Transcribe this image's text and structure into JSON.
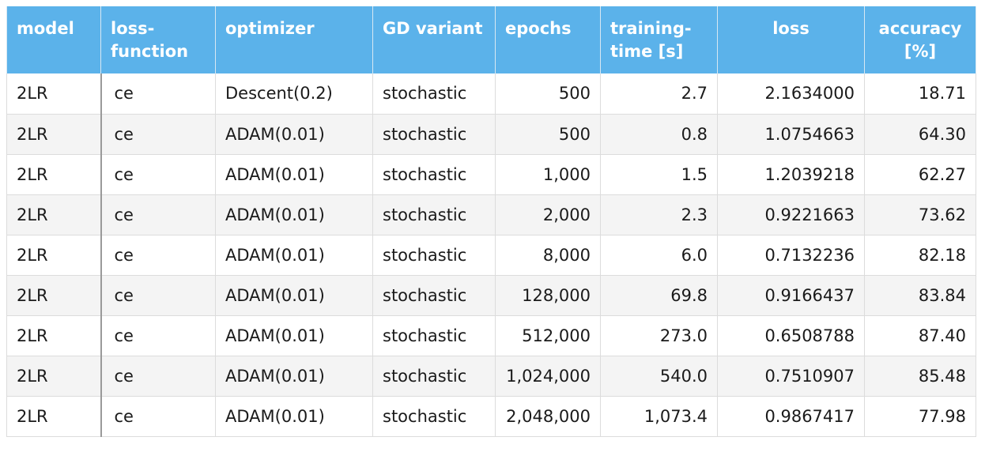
{
  "table": {
    "headers": {
      "model": "model",
      "loss_function": "loss-\nfunction",
      "optimizer": "optimizer",
      "gd_variant": "GD variant",
      "epochs": "epochs",
      "training_time": "training-\ntime [s]",
      "loss": "loss",
      "accuracy": "accuracy\n[%]"
    },
    "rows": [
      {
        "model": "2LR",
        "loss_function": "ce",
        "optimizer": "Descent(0.2)",
        "gd_variant": "stochastic",
        "epochs": "500",
        "training_time": "2.7",
        "loss": "2.1634000",
        "accuracy": "18.71"
      },
      {
        "model": "2LR",
        "loss_function": "ce",
        "optimizer": "ADAM(0.01)",
        "gd_variant": "stochastic",
        "epochs": "500",
        "training_time": "0.8",
        "loss": "1.0754663",
        "accuracy": "64.30"
      },
      {
        "model": "2LR",
        "loss_function": "ce",
        "optimizer": "ADAM(0.01)",
        "gd_variant": "stochastic",
        "epochs": "1,000",
        "training_time": "1.5",
        "loss": "1.2039218",
        "accuracy": "62.27"
      },
      {
        "model": "2LR",
        "loss_function": "ce",
        "optimizer": "ADAM(0.01)",
        "gd_variant": "stochastic",
        "epochs": "2,000",
        "training_time": "2.3",
        "loss": "0.9221663",
        "accuracy": "73.62"
      },
      {
        "model": "2LR",
        "loss_function": "ce",
        "optimizer": "ADAM(0.01)",
        "gd_variant": "stochastic",
        "epochs": "8,000",
        "training_time": "6.0",
        "loss": "0.7132236",
        "accuracy": "82.18"
      },
      {
        "model": "2LR",
        "loss_function": "ce",
        "optimizer": "ADAM(0.01)",
        "gd_variant": "stochastic",
        "epochs": "128,000",
        "training_time": "69.8",
        "loss": "0.9166437",
        "accuracy": "83.84"
      },
      {
        "model": "2LR",
        "loss_function": "ce",
        "optimizer": "ADAM(0.01)",
        "gd_variant": "stochastic",
        "epochs": "512,000",
        "training_time": "273.0",
        "loss": "0.6508788",
        "accuracy": "87.40"
      },
      {
        "model": "2LR",
        "loss_function": "ce",
        "optimizer": "ADAM(0.01)",
        "gd_variant": "stochastic",
        "epochs": "1,024,000",
        "training_time": "540.0",
        "loss": "0.7510907",
        "accuracy": "85.48"
      },
      {
        "model": "2LR",
        "loss_function": "ce",
        "optimizer": "ADAM(0.01)",
        "gd_variant": "stochastic",
        "epochs": "2,048,000",
        "training_time": "1,073.4",
        "loss": "0.9867417",
        "accuracy": "77.98"
      }
    ]
  },
  "colors": {
    "header_bg": "#5bb2ea",
    "header_text": "#ffffff",
    "row_alt_bg": "#f4f4f4"
  }
}
